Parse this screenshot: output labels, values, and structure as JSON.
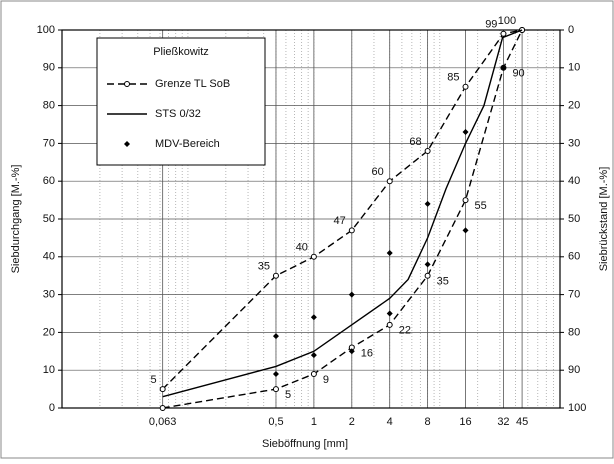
{
  "chart_data": {
    "type": "line",
    "legend_title": "Pließkowitz",
    "xlabel": "Sieböffnung   [mm]",
    "ylabel": "Siebdurchgang  [M.-%]",
    "y2label": "Siebrückstand  [M.-%]",
    "log_x": true,
    "grid": true,
    "xlim": [
      0.01,
      90
    ],
    "ylim": [
      0,
      100
    ],
    "y2lim": [
      100,
      0
    ],
    "xticks": [
      {
        "value": 0.063,
        "label": "0,063"
      },
      {
        "value": 0.5,
        "label": "0,5"
      },
      1,
      2,
      4,
      8,
      16,
      32,
      45
    ],
    "yticks": [
      0,
      10,
      20,
      30,
      40,
      50,
      60,
      70,
      80,
      90,
      100
    ],
    "y2ticks": [
      0,
      10,
      20,
      30,
      40,
      50,
      60,
      70,
      80,
      90,
      100
    ],
    "series": [
      {
        "name": "Grenze TL SoB",
        "color": "#000000",
        "dashed": true,
        "marker": "circle",
        "x": [
          0.063,
          0.5,
          1,
          2,
          4,
          8,
          16,
          32,
          45
        ],
        "values": [
          5,
          35,
          40,
          47,
          60,
          68,
          85,
          99,
          100
        ],
        "value_labels": [
          "5",
          "35",
          "40",
          "47",
          "60",
          "68",
          "85",
          "99",
          "100"
        ]
      },
      {
        "color": "#000000",
        "dashed": true,
        "marker": "circle",
        "x": [
          0.063,
          0.5,
          1,
          2,
          4,
          8,
          16,
          32,
          45
        ],
        "values": [
          0,
          5,
          9,
          16,
          22,
          35,
          55,
          90,
          100
        ],
        "value_labels": [
          null,
          "5",
          "9",
          "16",
          "22",
          "35",
          "55",
          "90",
          null
        ]
      },
      {
        "name": "STS 0/32",
        "color": "#000000",
        "dashed": false,
        "marker": "none",
        "x": [
          0.063,
          0.5,
          1,
          2,
          4,
          5.6,
          8,
          11.2,
          16,
          22.4,
          31.5,
          45
        ],
        "values": [
          3,
          11,
          15,
          22,
          29,
          34,
          45,
          58,
          70,
          80,
          98,
          100
        ]
      },
      {
        "name": "MDV-Bereich",
        "color": "#000000",
        "dashed": false,
        "marker": "diamond",
        "no_line": true,
        "x": [
          0.5,
          0.5,
          1,
          1,
          2,
          2,
          4,
          4,
          8,
          8,
          16,
          16,
          32
        ],
        "values": [
          19,
          9,
          24,
          14,
          30,
          15,
          41,
          25,
          54,
          38,
          73,
          47,
          90
        ]
      }
    ]
  }
}
